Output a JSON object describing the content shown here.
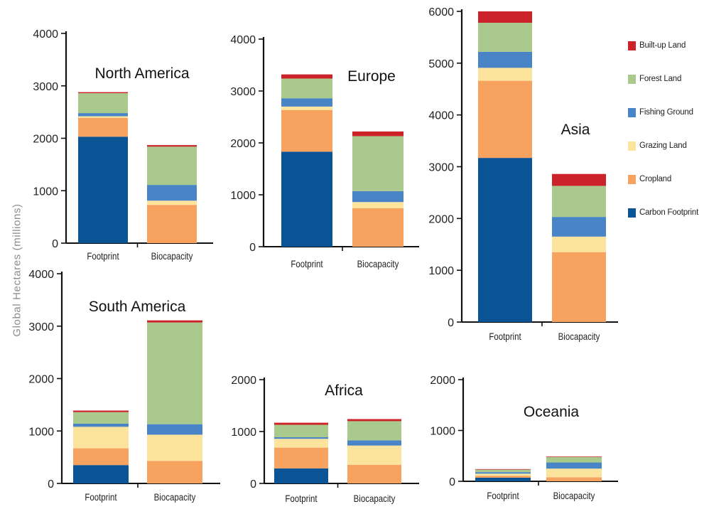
{
  "axis_title": "Global Hectares (millions)",
  "legend": [
    {
      "name": "Built-up Land",
      "color": "#cc2229",
      "icon": "red-square"
    },
    {
      "name": "Forest Land",
      "color": "#a9ca8c",
      "icon": "green-square"
    },
    {
      "name": "Fishing Ground",
      "color": "#4884c6",
      "icon": "blue-square"
    },
    {
      "name": "Grazing Land",
      "color": "#fde49c",
      "icon": "yellow-square"
    },
    {
      "name": "Cropland",
      "color": "#f7a25f",
      "icon": "orange-square"
    },
    {
      "name": "Carbon Footprint",
      "color": "#0a5495",
      "icon": "navy-square"
    }
  ],
  "chart_data": [
    {
      "type": "bar",
      "stacked": true,
      "title": "North America",
      "categories": [
        "Footprint",
        "Biocapacity"
      ],
      "ylim": [
        0,
        4000
      ],
      "yticks": [
        0,
        1000,
        2000,
        3000,
        4000
      ],
      "series": [
        {
          "name": "Carbon Footprint",
          "values": [
            2030,
            0
          ]
        },
        {
          "name": "Cropland",
          "values": [
            360,
            730
          ]
        },
        {
          "name": "Grazing Land",
          "values": [
            30,
            80
          ]
        },
        {
          "name": "Fishing Ground",
          "values": [
            60,
            300
          ]
        },
        {
          "name": "Forest Land",
          "values": [
            380,
            730
          ]
        },
        {
          "name": "Built-up Land",
          "values": [
            20,
            30
          ]
        }
      ]
    },
    {
      "type": "bar",
      "stacked": true,
      "title": "Europe",
      "categories": [
        "Footprint",
        "Biocapacity"
      ],
      "ylim": [
        0,
        4000
      ],
      "yticks": [
        0,
        1000,
        2000,
        3000,
        4000
      ],
      "series": [
        {
          "name": "Carbon Footprint",
          "values": [
            1830,
            0
          ]
        },
        {
          "name": "Cropland",
          "values": [
            800,
            740
          ]
        },
        {
          "name": "Grazing Land",
          "values": [
            70,
            120
          ]
        },
        {
          "name": "Fishing Ground",
          "values": [
            160,
            210
          ]
        },
        {
          "name": "Forest Land",
          "values": [
            380,
            1060
          ]
        },
        {
          "name": "Built-up Land",
          "values": [
            80,
            90
          ]
        }
      ]
    },
    {
      "type": "bar",
      "stacked": true,
      "title": "Asia",
      "categories": [
        "Footprint",
        "Biocapacity"
      ],
      "ylim": [
        0,
        6000
      ],
      "yticks": [
        0,
        1000,
        2000,
        3000,
        4000,
        5000,
        6000
      ],
      "series": [
        {
          "name": "Carbon Footprint",
          "values": [
            3170,
            0
          ]
        },
        {
          "name": "Cropland",
          "values": [
            1490,
            1350
          ]
        },
        {
          "name": "Grazing Land",
          "values": [
            250,
            300
          ]
        },
        {
          "name": "Fishing Ground",
          "values": [
            310,
            380
          ]
        },
        {
          "name": "Forest Land",
          "values": [
            560,
            600
          ]
        },
        {
          "name": "Built-up Land",
          "values": [
            220,
            230
          ]
        }
      ]
    },
    {
      "type": "bar",
      "stacked": true,
      "title": "South America",
      "categories": [
        "Footprint",
        "Biocapacity"
      ],
      "ylim": [
        0,
        4000
      ],
      "yticks": [
        0,
        1000,
        2000,
        3000,
        4000
      ],
      "series": [
        {
          "name": "Carbon Footprint",
          "values": [
            350,
            0
          ]
        },
        {
          "name": "Cropland",
          "values": [
            320,
            430
          ]
        },
        {
          "name": "Grazing Land",
          "values": [
            410,
            500
          ]
        },
        {
          "name": "Fishing Ground",
          "values": [
            60,
            200
          ]
        },
        {
          "name": "Forest Land",
          "values": [
            220,
            1940
          ]
        },
        {
          "name": "Built-up Land",
          "values": [
            30,
            40
          ]
        }
      ]
    },
    {
      "type": "bar",
      "stacked": true,
      "title": "Africa",
      "categories": [
        "Footprint",
        "Biocapacity"
      ],
      "ylim": [
        0,
        2000
      ],
      "yticks": [
        0,
        1000,
        2000
      ],
      "series": [
        {
          "name": "Carbon Footprint",
          "values": [
            290,
            0
          ]
        },
        {
          "name": "Cropland",
          "values": [
            400,
            360
          ]
        },
        {
          "name": "Grazing Land",
          "values": [
            170,
            370
          ]
        },
        {
          "name": "Fishing Ground",
          "values": [
            30,
            100
          ]
        },
        {
          "name": "Forest Land",
          "values": [
            240,
            370
          ]
        },
        {
          "name": "Built-up Land",
          "values": [
            40,
            40
          ]
        }
      ]
    },
    {
      "type": "bar",
      "stacked": true,
      "title": "Oceania",
      "categories": [
        "Footprint",
        "Biocapacity"
      ],
      "ylim": [
        0,
        2000
      ],
      "yticks": [
        0,
        1000,
        2000
      ],
      "series": [
        {
          "name": "Carbon Footprint",
          "values": [
            70,
            0
          ]
        },
        {
          "name": "Cropland",
          "values": [
            40,
            80
          ]
        },
        {
          "name": "Grazing Land",
          "values": [
            40,
            170
          ]
        },
        {
          "name": "Fishing Ground",
          "values": [
            30,
            120
          ]
        },
        {
          "name": "Forest Land",
          "values": [
            50,
            110
          ]
        },
        {
          "name": "Built-up Land",
          "values": [
            10,
            10
          ]
        }
      ]
    }
  ]
}
